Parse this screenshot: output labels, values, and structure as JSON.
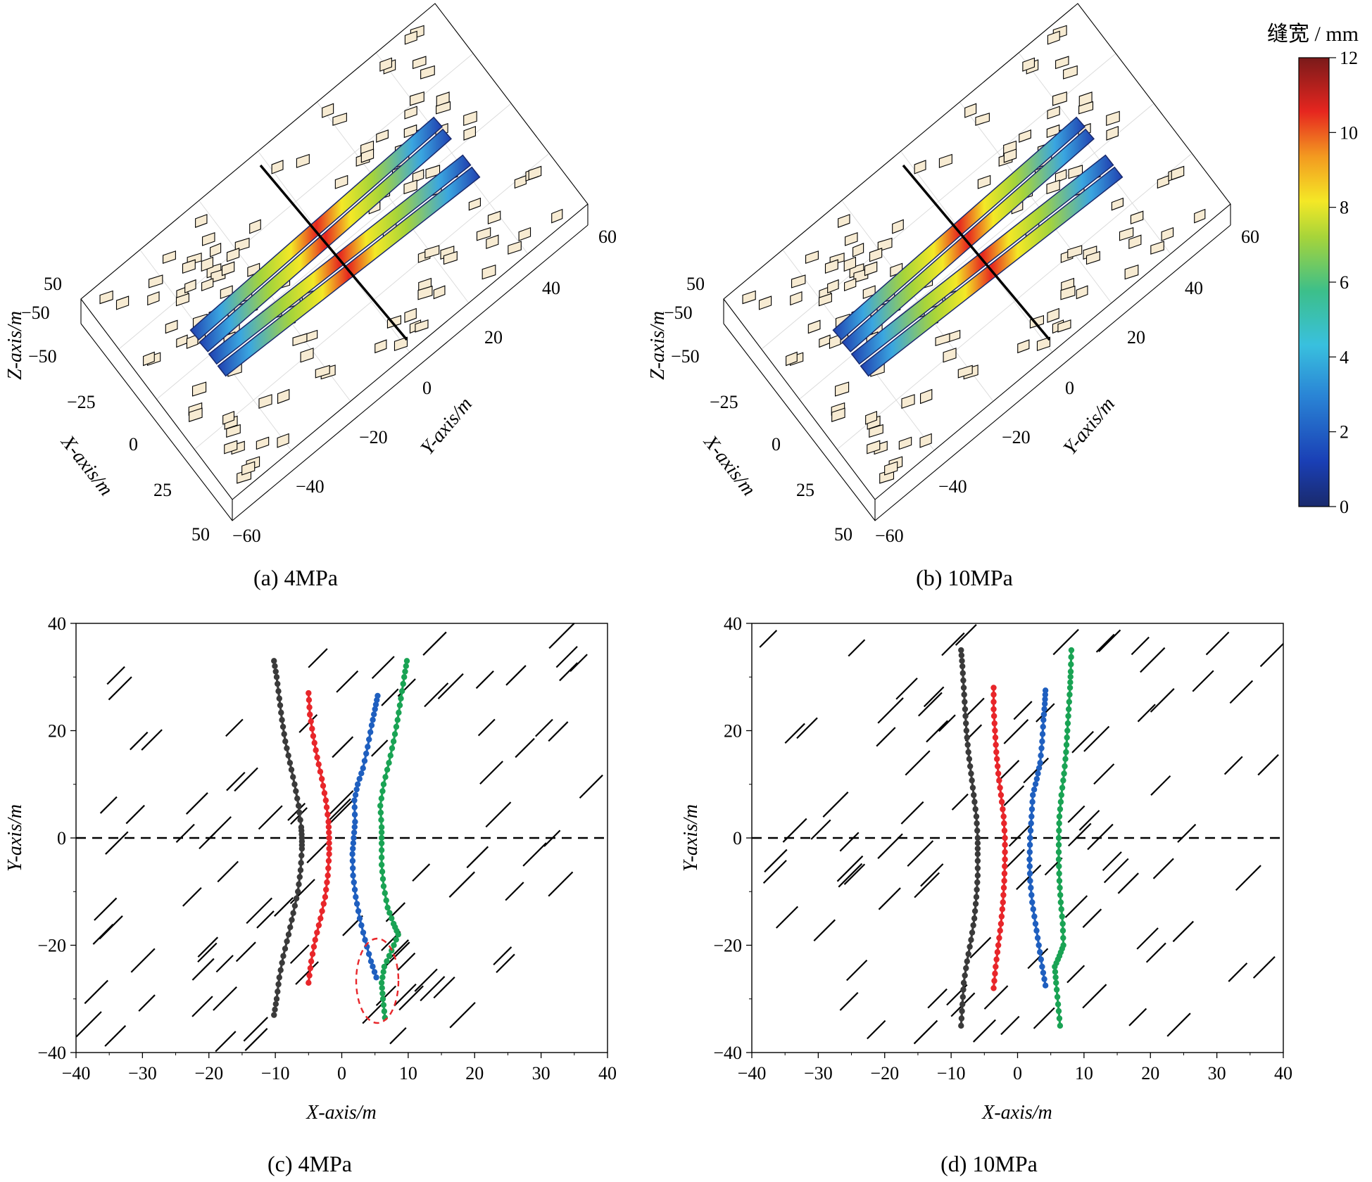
{
  "colorbar": {
    "title": "缝宽 / mm",
    "min": 0,
    "max": 12,
    "ticks": [
      "0",
      "2",
      "4",
      "6",
      "8",
      "10",
      "12"
    ],
    "colormap": "jet"
  },
  "captions": {
    "a": "(a) 4MPa",
    "b": "(b) 10MPa",
    "c": "(c) 4MPa",
    "d": "(d) 10MPa"
  },
  "chart_data": [
    {
      "panel": "a",
      "type": "3d-fracture-model",
      "xlabel": "X-axis/m",
      "ylabel": "Y-axis/m",
      "zlabel": "Z-axis/m",
      "x_ticks": [
        "−50",
        "−25",
        "0",
        "25",
        "50"
      ],
      "y_ticks": [
        "−60",
        "−40",
        "−20",
        "0",
        "20",
        "40",
        "60"
      ],
      "z_ticks": [
        "50",
        "−50"
      ],
      "xlim": [
        -50,
        50
      ],
      "ylim": [
        -60,
        60
      ],
      "zlim": [
        -50,
        50
      ],
      "hydraulic_fractures": 4,
      "max_width_mm": 12
    },
    {
      "panel": "b",
      "type": "3d-fracture-model",
      "xlabel": "X-axis/m",
      "ylabel": "Y-axis/m",
      "zlabel": "Z-axis/m",
      "x_ticks": [
        "−50",
        "−25",
        "0",
        "25",
        "50"
      ],
      "y_ticks": [
        "−60",
        "−40",
        "−20",
        "0",
        "20",
        "40",
        "60"
      ],
      "z_ticks": [
        "50",
        "−50"
      ],
      "xlim": [
        -50,
        50
      ],
      "ylim": [
        -60,
        60
      ],
      "zlim": [
        -50,
        50
      ],
      "hydraulic_fractures": 4,
      "max_width_mm": 12
    },
    {
      "panel": "c",
      "type": "line",
      "xlabel": "X-axis/m",
      "ylabel": "Y-axis/m",
      "xlim": [
        -40,
        40
      ],
      "ylim": [
        -40,
        40
      ],
      "x_ticks": [
        "−40",
        "−30",
        "−20",
        "−10",
        "0",
        "10",
        "20",
        "30",
        "40"
      ],
      "y_ticks": [
        "−40",
        "−20",
        "0",
        "20",
        "40"
      ],
      "wellbore_y": 0,
      "series": [
        {
          "color": "#3a3a3a",
          "points": [
            [
              -10.2,
              -33
            ],
            [
              -9.8,
              -30
            ],
            [
              -9.4,
              -26
            ],
            [
              -8.8,
              -22
            ],
            [
              -8.0,
              -18
            ],
            [
              -7.3,
              -14
            ],
            [
              -6.6,
              -10
            ],
            [
              -6.2,
              -6
            ],
            [
              -6.0,
              -2
            ],
            [
              -6.0,
              0
            ],
            [
              -6.1,
              2
            ],
            [
              -6.5,
              6
            ],
            [
              -7.1,
              10
            ],
            [
              -7.8,
              14
            ],
            [
              -8.5,
              18
            ],
            [
              -9.0,
              22
            ],
            [
              -9.4,
              26
            ],
            [
              -9.8,
              30
            ],
            [
              -10.2,
              33
            ]
          ]
        },
        {
          "color": "#e8262a",
          "points": [
            [
              -5.0,
              -27
            ],
            [
              -4.6,
              -23
            ],
            [
              -4.0,
              -19
            ],
            [
              -3.2,
              -15
            ],
            [
              -2.5,
              -11
            ],
            [
              -2.1,
              -7
            ],
            [
              -1.9,
              -3
            ],
            [
              -1.9,
              0
            ],
            [
              -2.0,
              3
            ],
            [
              -2.4,
              7
            ],
            [
              -3.0,
              11
            ],
            [
              -3.7,
              15
            ],
            [
              -4.3,
              19
            ],
            [
              -4.8,
              23
            ],
            [
              -5.0,
              27
            ]
          ]
        },
        {
          "color": "#1f5fbf",
          "points": [
            [
              5.2,
              -26
            ],
            [
              4.4,
              -23
            ],
            [
              3.5,
              -19
            ],
            [
              2.7,
              -15
            ],
            [
              2.1,
              -11
            ],
            [
              1.7,
              -7
            ],
            [
              1.6,
              -3
            ],
            [
              1.8,
              0
            ],
            [
              2.0,
              3
            ],
            [
              1.9,
              7
            ],
            [
              2.4,
              10
            ],
            [
              3.2,
              13
            ],
            [
              3.9,
              17
            ],
            [
              4.5,
              21
            ],
            [
              5.0,
              24
            ],
            [
              5.4,
              26.5
            ]
          ]
        },
        {
          "color": "#1aa354",
          "points": [
            [
              6.5,
              -33.5
            ],
            [
              6.2,
              -30
            ],
            [
              6.0,
              -27
            ],
            [
              6.4,
              -24
            ],
            [
              7.5,
              -21
            ],
            [
              8.5,
              -18
            ],
            [
              7.8,
              -16
            ],
            [
              6.9,
              -13
            ],
            [
              6.3,
              -9
            ],
            [
              6.0,
              -5
            ],
            [
              6.0,
              -1
            ],
            [
              6.0,
              2
            ],
            [
              5.8,
              6
            ],
            [
              6.3,
              10
            ],
            [
              7.1,
              14
            ],
            [
              7.8,
              18
            ],
            [
              8.4,
              22
            ],
            [
              8.9,
              26
            ],
            [
              9.4,
              30
            ],
            [
              9.8,
              33
            ]
          ]
        }
      ]
    },
    {
      "panel": "d",
      "type": "line",
      "xlabel": "X-axis/m",
      "ylabel": "Y-axis/m",
      "xlim": [
        -40,
        40
      ],
      "ylim": [
        -40,
        40
      ],
      "x_ticks": [
        "−40",
        "−30",
        "−20",
        "−10",
        "0",
        "10",
        "20",
        "30",
        "40"
      ],
      "y_ticks": [
        "−40",
        "−20",
        "0",
        "20",
        "40"
      ],
      "wellbore_y": 0,
      "series": [
        {
          "color": "#3a3a3a",
          "points": [
            [
              -8.5,
              -35
            ],
            [
              -8.3,
              -31
            ],
            [
              -8.1,
              -27
            ],
            [
              -7.6,
              -23
            ],
            [
              -7.0,
              -19
            ],
            [
              -6.5,
              -15
            ],
            [
              -6.2,
              -11
            ],
            [
              -6.0,
              -7
            ],
            [
              -6.0,
              -3
            ],
            [
              -6.0,
              0
            ],
            [
              -6.2,
              4
            ],
            [
              -6.6,
              8
            ],
            [
              -7.0,
              12
            ],
            [
              -7.4,
              16
            ],
            [
              -7.7,
              20
            ],
            [
              -7.9,
              24
            ],
            [
              -8.1,
              28
            ],
            [
              -8.3,
              32
            ],
            [
              -8.5,
              35
            ]
          ]
        },
        {
          "color": "#e8262a",
          "points": [
            [
              -3.6,
              -28
            ],
            [
              -3.3,
              -24
            ],
            [
              -2.9,
              -20
            ],
            [
              -2.5,
              -16
            ],
            [
              -2.2,
              -12
            ],
            [
              -2.0,
              -8
            ],
            [
              -1.9,
              -4
            ],
            [
              -1.9,
              0
            ],
            [
              -2.1,
              4
            ],
            [
              -2.5,
              8
            ],
            [
              -2.9,
              12
            ],
            [
              -3.2,
              16
            ],
            [
              -3.4,
              20
            ],
            [
              -3.6,
              24
            ],
            [
              -3.6,
              28
            ]
          ]
        },
        {
          "color": "#1f5fbf",
          "points": [
            [
              4.2,
              -27.5
            ],
            [
              3.7,
              -24
            ],
            [
              3.2,
              -20
            ],
            [
              2.7,
              -16
            ],
            [
              2.2,
              -12
            ],
            [
              1.9,
              -8
            ],
            [
              1.8,
              -4
            ],
            [
              1.9,
              0
            ],
            [
              2.1,
              4
            ],
            [
              2.3,
              8
            ],
            [
              2.9,
              11
            ],
            [
              3.4,
              14
            ],
            [
              3.7,
              18
            ],
            [
              3.9,
              22
            ],
            [
              4.1,
              25
            ],
            [
              4.2,
              27.5
            ]
          ]
        },
        {
          "color": "#1aa354",
          "points": [
            [
              6.4,
              -35
            ],
            [
              6.1,
              -31
            ],
            [
              5.8,
              -27
            ],
            [
              5.6,
              -24
            ],
            [
              6.3,
              -22
            ],
            [
              6.9,
              -20
            ],
            [
              6.8,
              -16
            ],
            [
              6.5,
              -12
            ],
            [
              6.3,
              -8
            ],
            [
              6.2,
              -4
            ],
            [
              6.2,
              0
            ],
            [
              6.3,
              4
            ],
            [
              6.6,
              8
            ],
            [
              7.0,
              12
            ],
            [
              7.3,
              16
            ],
            [
              7.5,
              20
            ],
            [
              7.7,
              24
            ],
            [
              7.9,
              28
            ],
            [
              8.0,
              31
            ],
            [
              8.1,
              35
            ]
          ]
        }
      ]
    }
  ]
}
